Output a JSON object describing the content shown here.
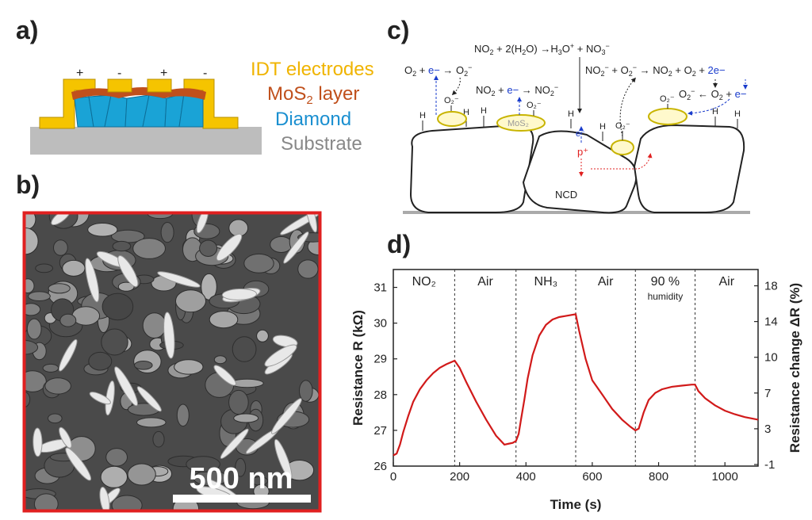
{
  "panels": {
    "a": "a)",
    "b": "b)",
    "c": "c)",
    "d": "d)"
  },
  "panel_a": {
    "polarity": [
      "+",
      "-",
      "+",
      "-"
    ],
    "legend": {
      "idt": "IDT electrodes",
      "mos2_pre": "MoS",
      "mos2_sub": "2",
      "mos2_post": " layer",
      "diamond": "Diamond",
      "substrate": "Substrate"
    },
    "colors": {
      "idt": "#f5c400",
      "idt_text": "#f0b400",
      "mos2": "#c0501c",
      "diamond": "#1aa3d6",
      "substrate": "#bdbdbd"
    }
  },
  "panel_b": {
    "scale_bar": "500 nm",
    "border_color": "#e02020"
  },
  "panel_c": {
    "equations": {
      "eq1_a": "NO",
      "eq1_b": "2",
      "eq1_c": " + 2(H",
      "eq1_d": "2",
      "eq1_e": "O) →H",
      "eq1_f": "3",
      "eq1_g": "O",
      "eq1_h": "+",
      "eq1_i": " + NO",
      "eq1_j": "3",
      "eq1_k": "−",
      "eq2_a": "O",
      "eq2_b": "2",
      "eq2_c": " + ",
      "eq2_d": "e−",
      "eq2_e": " → O",
      "eq2_f": "2",
      "eq2_g": "−",
      "eq3_a": "NO",
      "eq3_b": "2",
      "eq3_c": " + ",
      "eq3_d": "e−",
      "eq3_e": " → NO",
      "eq3_f": "2",
      "eq3_g": "−",
      "eq4_a": "NO",
      "eq4_b": "2",
      "eq4_c": "−",
      "eq4_d": " + O",
      "eq4_e": "2",
      "eq4_f": "−",
      "eq4_g": " → NO",
      "eq4_h": "2",
      "eq4_i": " + O",
      "eq4_j": "2",
      "eq4_k": " + ",
      "eq4_l": "2e−",
      "eq5_a": "O",
      "eq5_b": "2",
      "eq5_c": "−",
      "eq5_d": " ← O",
      "eq5_e": "2",
      "eq5_f": " + ",
      "eq5_g": "e−"
    },
    "labels": {
      "o2minus": "O₂⁻",
      "mos2": "MoS₂",
      "h": "H",
      "eminus": "e⁻",
      "pplus": "p⁺",
      "ncd": "NCD"
    }
  },
  "chart_data": {
    "type": "line",
    "xlabel": "Time (s)",
    "ylabel": "Resistance R (kΩ)",
    "ylabel_right": "Resistance change ΔR (%)",
    "xlim": [
      0,
      1100
    ],
    "ylim": [
      26,
      31.5
    ],
    "xticks": [
      0,
      200,
      400,
      600,
      800,
      1000
    ],
    "yticks": [
      26,
      27,
      28,
      29,
      30,
      31
    ],
    "yticks_right": [
      "-1",
      "3",
      "7",
      "10",
      "14",
      "18"
    ],
    "segments": [
      {
        "label": "NO₂",
        "start": 0,
        "end": 185
      },
      {
        "label": "Air",
        "start": 185,
        "end": 370
      },
      {
        "label": "NH₃",
        "start": 370,
        "end": 550
      },
      {
        "label": "Air",
        "start": 550,
        "end": 730
      },
      {
        "label": "90 %",
        "sublabel": "humidity",
        "start": 730,
        "end": 910
      },
      {
        "label": "Air",
        "start": 910,
        "end": 1100
      }
    ],
    "boundaries": [
      185,
      370,
      550,
      730,
      910
    ],
    "series": [
      {
        "color": "#d11a1a",
        "x": [
          0,
          10,
          20,
          30,
          45,
          60,
          80,
          100,
          120,
          140,
          160,
          185,
          200,
          220,
          250,
          280,
          310,
          335,
          345,
          360,
          370,
          378,
          385,
          395,
          405,
          420,
          440,
          460,
          480,
          500,
          520,
          550,
          560,
          580,
          600,
          630,
          660,
          690,
          715,
          730,
          740,
          755,
          770,
          790,
          810,
          840,
          870,
          900,
          910,
          920,
          940,
          970,
          1000,
          1030,
          1060,
          1100
        ],
        "y": [
          26.3,
          26.35,
          26.6,
          26.95,
          27.4,
          27.8,
          28.15,
          28.4,
          28.6,
          28.75,
          28.85,
          28.95,
          28.75,
          28.35,
          27.8,
          27.3,
          26.85,
          26.6,
          26.62,
          26.65,
          26.7,
          26.9,
          27.3,
          27.85,
          28.45,
          29.1,
          29.65,
          29.95,
          30.1,
          30.17,
          30.2,
          30.25,
          29.8,
          29.0,
          28.4,
          28.0,
          27.6,
          27.3,
          27.1,
          27.0,
          27.05,
          27.5,
          27.85,
          28.05,
          28.15,
          28.22,
          28.25,
          28.28,
          28.28,
          28.1,
          27.9,
          27.7,
          27.55,
          27.45,
          27.37,
          27.3
        ]
      }
    ]
  }
}
